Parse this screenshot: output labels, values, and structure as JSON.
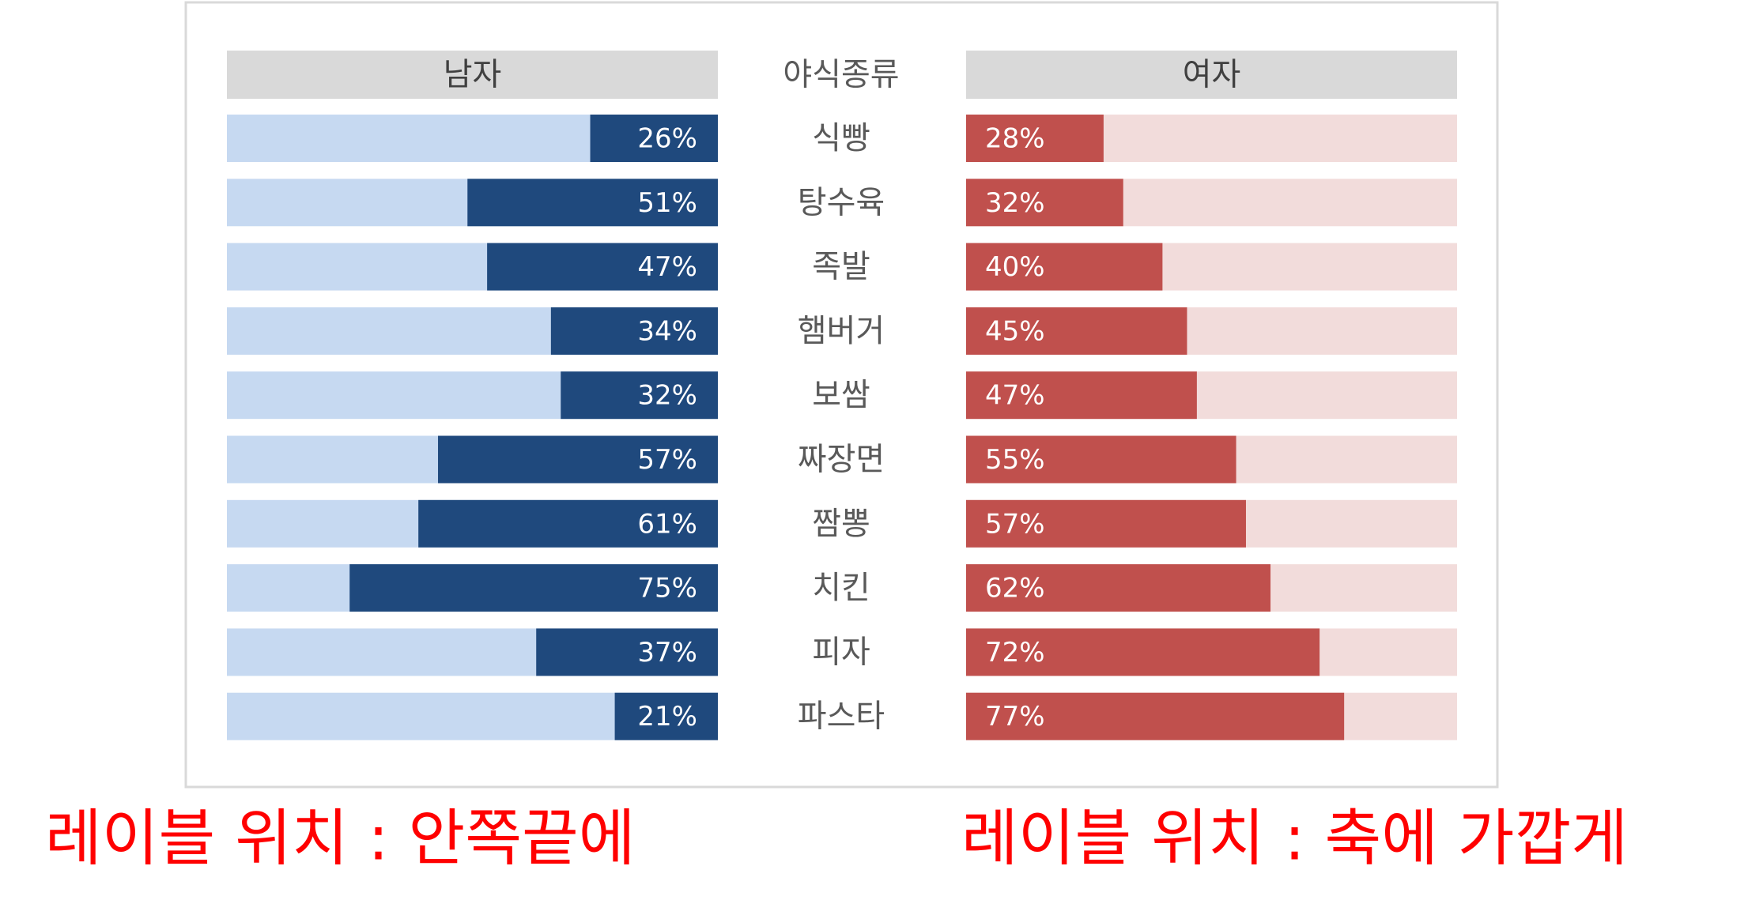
{
  "chart_data": {
    "type": "butterfly-bar",
    "category_header": "야식종류",
    "categories": [
      "식빵",
      "탕수육",
      "족발",
      "햄버거",
      "보쌈",
      "짜장면",
      "짬뽕",
      "치킨",
      "피자",
      "파스타"
    ],
    "xlim": [
      0,
      100
    ],
    "series": [
      {
        "name": "남자",
        "color": "#1f497d",
        "background_color": "#c6d9f1",
        "label_color": "#ffffff",
        "values": [
          26,
          51,
          47,
          34,
          32,
          57,
          61,
          75,
          37,
          21
        ],
        "value_labels": [
          "26%",
          "51%",
          "47%",
          "34%",
          "32%",
          "57%",
          "61%",
          "75%",
          "37%",
          "21%"
        ]
      },
      {
        "name": "여자",
        "color": "#c0504d",
        "background_color": "#f2dcdb",
        "label_color": "#ffffff",
        "values": [
          28,
          32,
          40,
          45,
          47,
          55,
          57,
          62,
          72,
          77
        ],
        "value_labels": [
          "28%",
          "32%",
          "40%",
          "45%",
          "47%",
          "55%",
          "57%",
          "62%",
          "72%",
          "77%"
        ]
      }
    ],
    "annotations": [
      "레이블 위치 : 안쪽끝에",
      "레이블 위치 : 축에 가깝게"
    ],
    "annotation_color": "#ff0000"
  }
}
